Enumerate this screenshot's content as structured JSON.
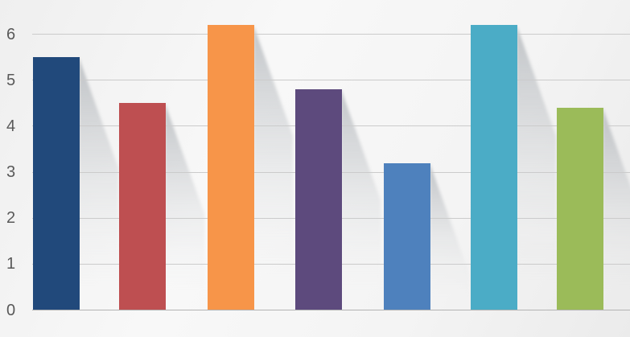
{
  "chart_data": {
    "type": "bar",
    "title": "",
    "xlabel": "",
    "ylabel": "",
    "values": [
      5.5,
      4.5,
      6.2,
      4.8,
      3.2,
      6.2,
      4.4
    ],
    "bar_colors": [
      "#21497B",
      "#BE4F51",
      "#F79549",
      "#5D4A7D",
      "#4E81BD",
      "#4BACC6",
      "#9BBB59"
    ],
    "yticks": [
      0,
      1,
      2,
      3,
      4,
      5,
      6
    ],
    "ylim": [
      0,
      6.55
    ],
    "grid": true,
    "legend": false,
    "tick_label_color": "#595959",
    "gridline_color": "#cbcbcb",
    "baseline_color": "#b3b3b3",
    "shadow_color": "#8c939a",
    "shadow_style": "perspective-diagonal-right",
    "background_light": "#f8f8f8",
    "background_dark": "#ebebeb"
  }
}
